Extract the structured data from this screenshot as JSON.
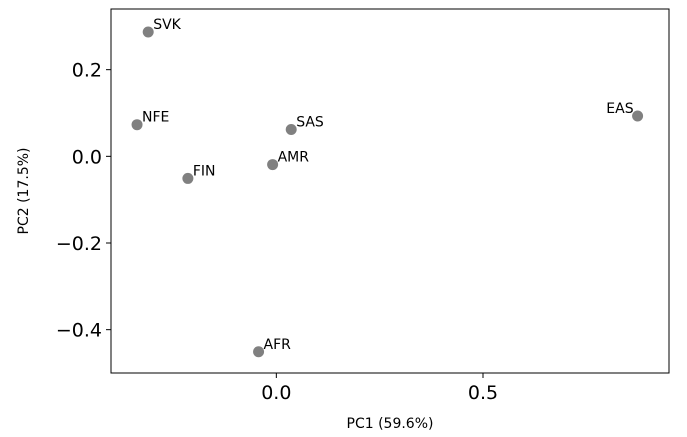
{
  "chart_data": {
    "type": "scatter",
    "title": "",
    "xlabel": "PC1 (59.6%)",
    "ylabel": "PC2 (17.5%)",
    "xlim": [
      -0.4,
      0.95
    ],
    "ylim": [
      -0.5,
      0.34
    ],
    "grid": false,
    "marker_color": "#808080",
    "x_ticks": [
      {
        "value": 0.0,
        "label": "0.0"
      },
      {
        "value": 0.5,
        "label": "0.5"
      }
    ],
    "y_ticks": [
      {
        "value": 0.2,
        "label": "0.2"
      },
      {
        "value": 0.0,
        "label": "0.0"
      },
      {
        "value": -0.2,
        "label": "−0.2"
      },
      {
        "value": -0.4,
        "label": "−0.4"
      }
    ],
    "points": [
      {
        "label": "SVK",
        "x": -0.31,
        "y": 0.287
      },
      {
        "label": "NFE",
        "x": -0.337,
        "y": 0.073
      },
      {
        "label": "FIN",
        "x": -0.214,
        "y": -0.051
      },
      {
        "label": "AMR",
        "x": -0.009,
        "y": -0.019
      },
      {
        "label": "SAS",
        "x": 0.036,
        "y": 0.062
      },
      {
        "label": "AFR",
        "x": -0.043,
        "y": -0.451
      },
      {
        "label": "EAS",
        "x": 0.874,
        "y": 0.093
      }
    ]
  }
}
